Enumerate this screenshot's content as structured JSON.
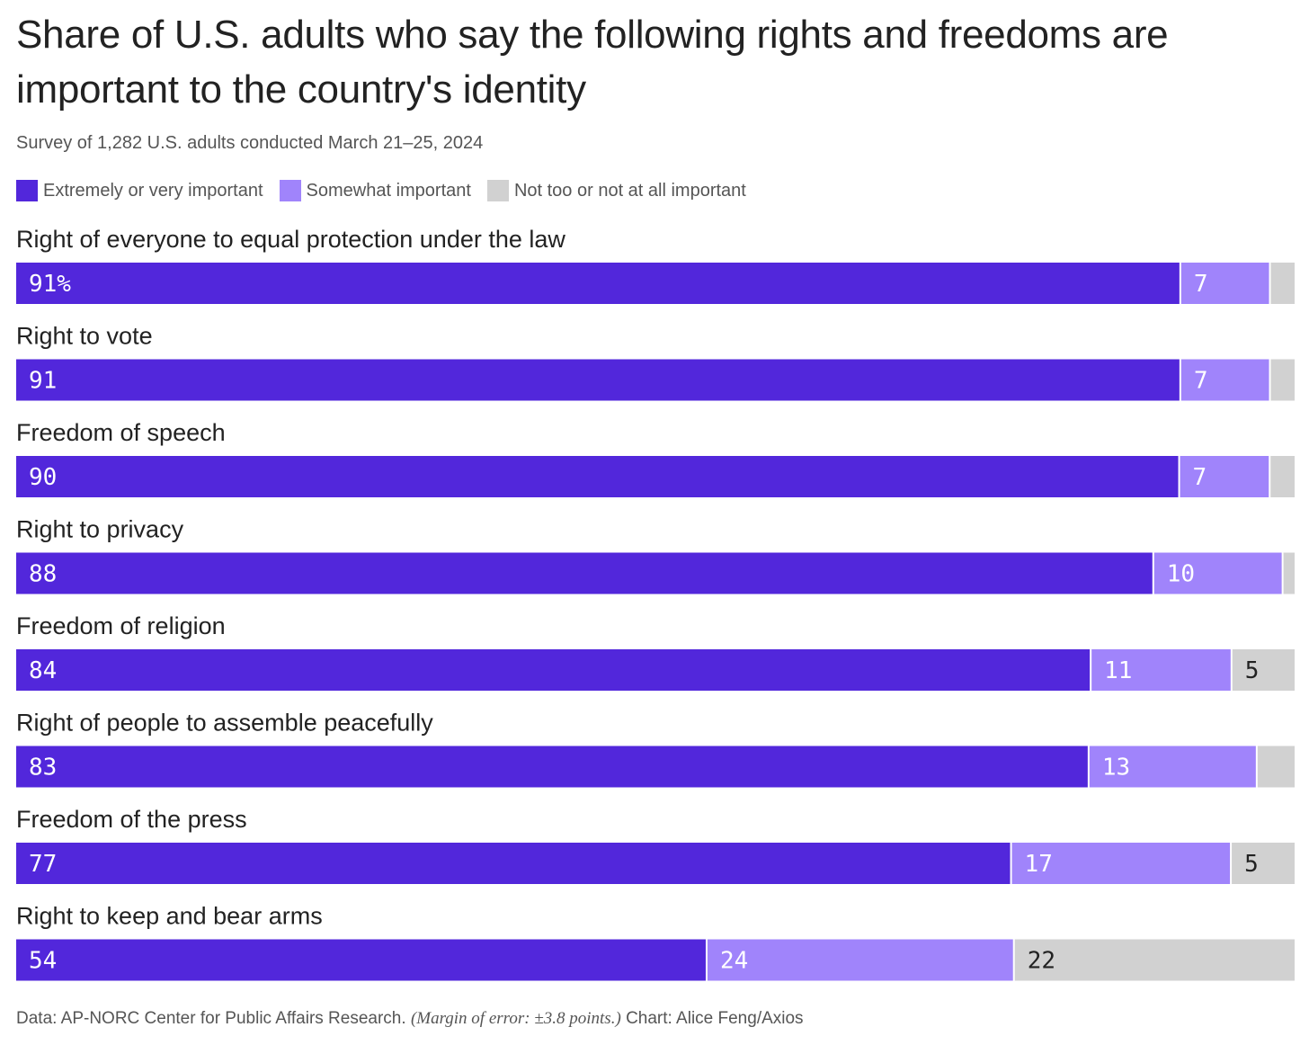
{
  "title": "Share of U.S. adults who say the following rights and freedoms are important to the country's identity",
  "subtitle": "Survey of 1,282 U.S. adults conducted March 21–25, 2024",
  "footer": {
    "source": "Data: AP-NORC Center for Public Affairs Research.",
    "note": "(Margin of error: ±3.8 points.)",
    "credit": "Chart: Alice Feng/Axios"
  },
  "colors": {
    "extremely": "#5227DB",
    "somewhat": "#A084FB",
    "not": "#D1D1D1"
  },
  "chart_data": {
    "type": "bar",
    "orientation": "horizontal",
    "stacked": true,
    "unit": "%",
    "legend_position": "top-left",
    "categories": [
      "Right of everyone to equal protection under the law",
      "Right to vote",
      "Freedom of speech",
      "Right to privacy",
      "Freedom of religion",
      "Right of people to assemble peacefully",
      "Freedom of the press",
      "Right to keep and bear arms"
    ],
    "series": [
      {
        "name": "Extremely or very important",
        "values": [
          91,
          91,
          90,
          88,
          84,
          83,
          77,
          54
        ],
        "labels": [
          "91%",
          "91",
          "90",
          "88",
          "84",
          "83",
          "77",
          "54"
        ]
      },
      {
        "name": "Somewhat important",
        "values": [
          7,
          7,
          7,
          10,
          11,
          13,
          17,
          24
        ],
        "labels": [
          "7",
          "7",
          "7",
          "10",
          "11",
          "13",
          "17",
          "24"
        ]
      },
      {
        "name": "Not too or not at all important",
        "values": [
          2,
          2,
          2,
          1,
          5,
          3,
          5,
          22
        ],
        "labels": [
          "",
          "",
          "",
          "",
          "5",
          "",
          "5",
          "22"
        ]
      }
    ]
  }
}
